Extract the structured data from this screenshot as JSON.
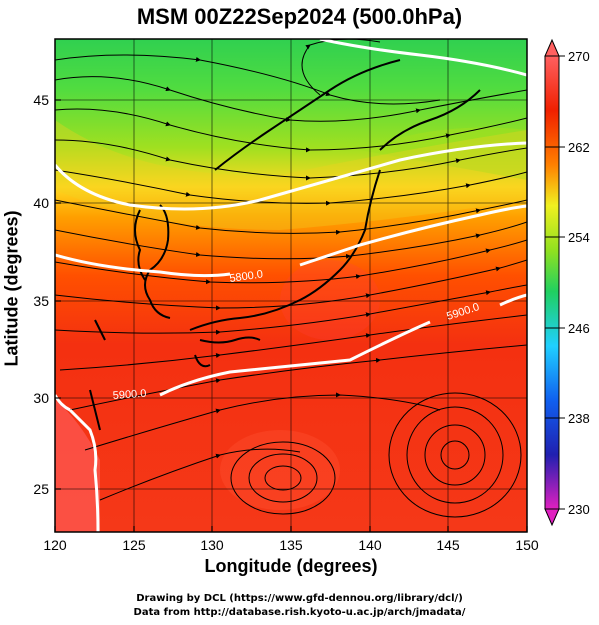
{
  "title": "MSM 00Z22Sep2024 (500.0hPa)",
  "x_axis": {
    "label": "Longitude (degrees)",
    "ticks": [
      "120",
      "125",
      "130",
      "135",
      "140",
      "145",
      "150"
    ],
    "range": [
      120,
      150
    ]
  },
  "y_axis": {
    "label": "Latitude  (degrees)",
    "ticks": [
      "25",
      "30",
      "35",
      "40",
      "45"
    ],
    "range": [
      22.5,
      47.5
    ]
  },
  "colorbar": {
    "ticks": [
      "270",
      "262",
      "254",
      "246",
      "238",
      "230"
    ],
    "range": [
      230,
      270
    ],
    "colors": [
      "#e020c0",
      "#2020b0",
      "#1060f0",
      "#20d0ff",
      "#20d060",
      "#90e020",
      "#f0f020",
      "#ff8000",
      "#f02000",
      "#ff6060"
    ]
  },
  "contours": [
    {
      "label": "5900.0"
    },
    {
      "label": "5900.0"
    },
    {
      "label": "5800.0"
    }
  ],
  "credits": {
    "line1": "Drawing by DCL (https://www.gfd-dennou.org/library/dcl/)",
    "line2": "Data from http://database.rish.kyoto-u.ac.jp/arch/jmadata/"
  }
}
